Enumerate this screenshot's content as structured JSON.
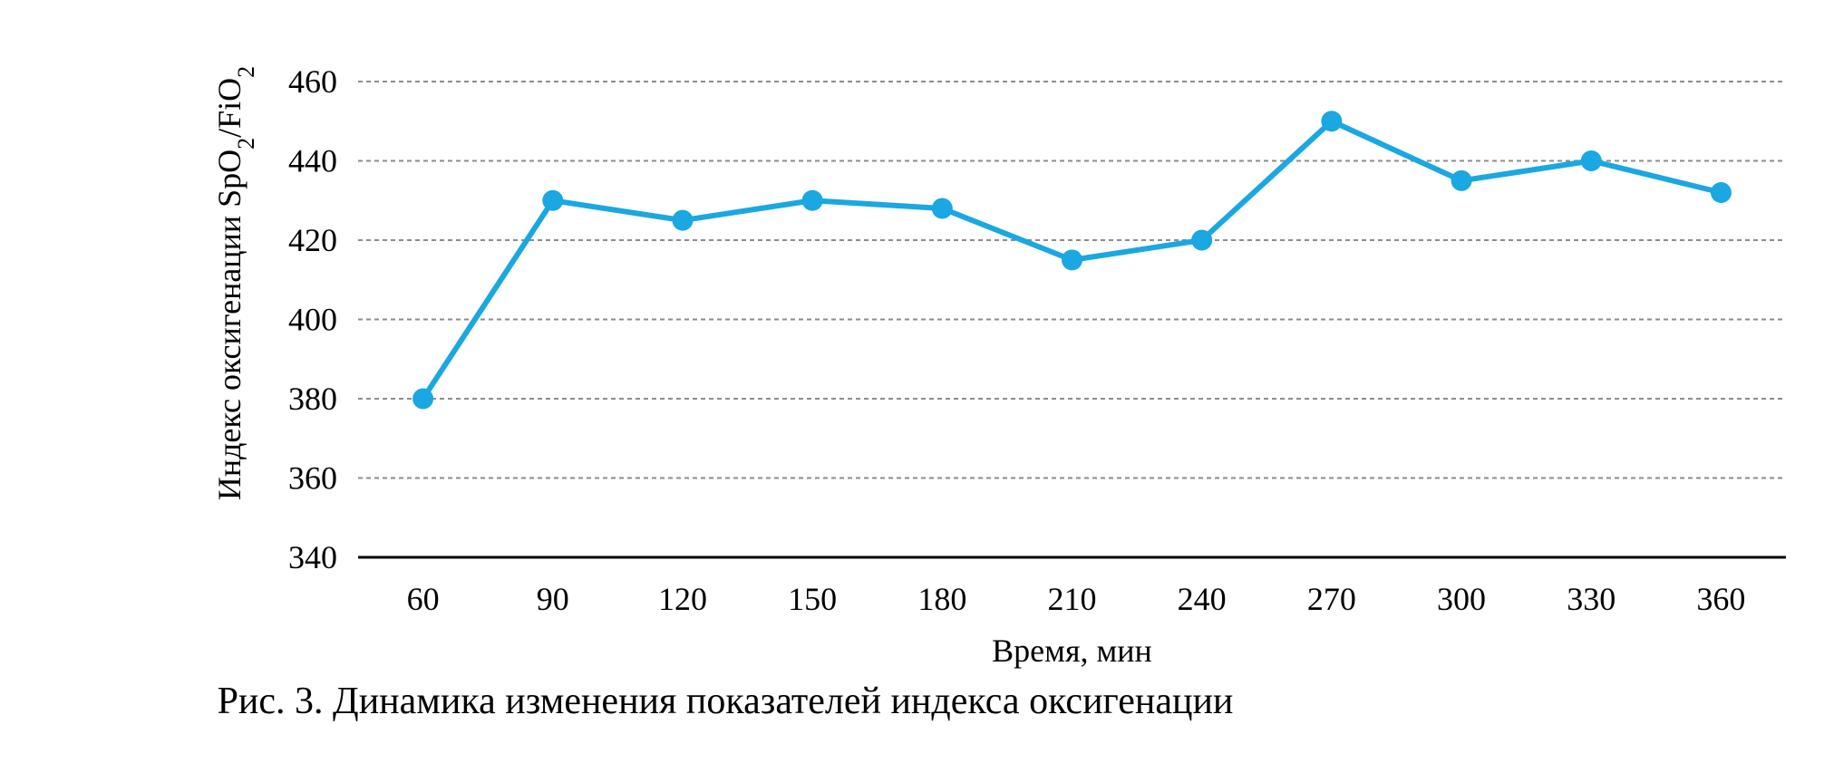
{
  "chart_data": {
    "type": "line",
    "x": [
      60,
      90,
      120,
      150,
      180,
      210,
      240,
      270,
      300,
      330,
      360
    ],
    "series": [
      {
        "values": [
          380,
          430,
          425,
          430,
          428,
          415,
          420,
          450,
          435,
          440,
          432
        ]
      }
    ],
    "xlabel": "Время, мин",
    "ylabel": "Индекс оксигенации SpO2/FiO2",
    "ylabel_parts": {
      "main": "Индекс оксигенации SpO",
      "sub1": "2",
      "mid": "/FiO",
      "sub2": "2"
    },
    "ylim": [
      340,
      460
    ],
    "yticks": [
      340,
      360,
      380,
      400,
      420,
      440,
      460
    ],
    "grid": "horizontal-dashed",
    "line_color": "#1AA7E2",
    "legend": "none"
  },
  "caption": "Рис. 3. Динамика изменения показателей индекса оксигенации"
}
